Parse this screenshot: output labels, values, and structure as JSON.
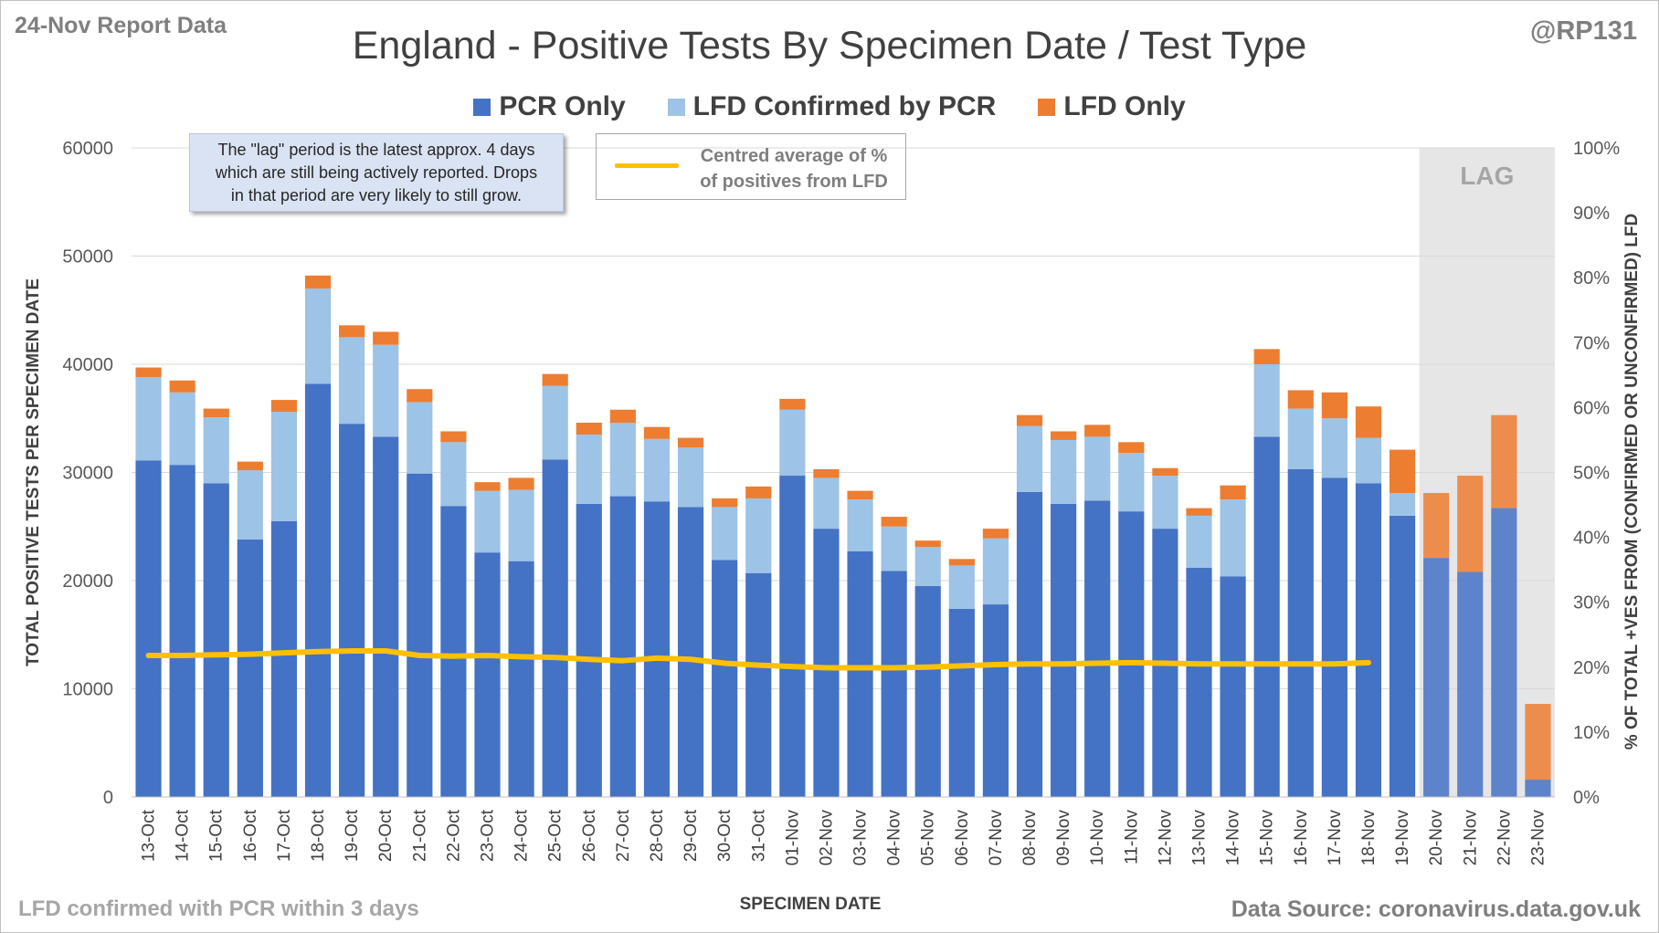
{
  "report_label": "24-Nov Report Data",
  "handle": "@RP131",
  "footer_left": "LFD confirmed with PCR within 3 days",
  "footer_right": "Data Source: coronavirus.data.gov.uk",
  "note_box": {
    "line1": "The \"lag\" period is the latest approx. 4 days",
    "line2": "which are still being actively reported. Drops",
    "line3": "in that period are very likely to still grow."
  },
  "line_legend": {
    "line1": "Centred average of %",
    "line2": "of positives from LFD"
  },
  "lag_label": "LAG",
  "colors": {
    "pcr": "#4472c4",
    "lfd_confirmed": "#9dc3e6",
    "lfd_only": "#ed7d31",
    "avg_line": "#ffc000",
    "lag_shade": "#e7e6e6",
    "grid": "#d9d9d9"
  },
  "chart_data": {
    "type": "bar",
    "stacked": true,
    "title": "England - Positive Tests By Specimen Date / Test Type",
    "xlabel": "SPECIMEN DATE",
    "ylabel": "TOTAL POSITIVE TESTS PER SPECIMEN DATE",
    "y2label": "% OF TOTAL +VES FROM (CONFIRMED OR UNCONFIRMED) LFD",
    "ylim": [
      0,
      60000
    ],
    "yticks": [
      0,
      10000,
      20000,
      30000,
      40000,
      50000,
      60000
    ],
    "y2lim": [
      0,
      100
    ],
    "y2ticks": [
      "0%",
      "10%",
      "20%",
      "30%",
      "40%",
      "50%",
      "60%",
      "70%",
      "80%",
      "90%",
      "100%"
    ],
    "grid": true,
    "legend_position": "top",
    "lag_categories": [
      "20-Nov",
      "21-Nov",
      "22-Nov",
      "23-Nov"
    ],
    "categories": [
      "13-Oct",
      "14-Oct",
      "15-Oct",
      "16-Oct",
      "17-Oct",
      "18-Oct",
      "19-Oct",
      "20-Oct",
      "21-Oct",
      "22-Oct",
      "23-Oct",
      "24-Oct",
      "25-Oct",
      "26-Oct",
      "27-Oct",
      "28-Oct",
      "29-Oct",
      "30-Oct",
      "31-Oct",
      "01-Nov",
      "02-Nov",
      "03-Nov",
      "04-Nov",
      "05-Nov",
      "06-Nov",
      "07-Nov",
      "08-Nov",
      "09-Nov",
      "10-Nov",
      "11-Nov",
      "12-Nov",
      "13-Nov",
      "14-Nov",
      "15-Nov",
      "16-Nov",
      "17-Nov",
      "18-Nov",
      "19-Nov",
      "20-Nov",
      "21-Nov",
      "22-Nov",
      "23-Nov"
    ],
    "series": [
      {
        "name": "PCR Only",
        "values": [
          31100,
          30700,
          29000,
          23800,
          25500,
          38200,
          34500,
          33300,
          29900,
          26900,
          22600,
          21800,
          31200,
          27100,
          27800,
          27300,
          26800,
          21900,
          20700,
          29700,
          24800,
          22700,
          20900,
          19500,
          17400,
          17800,
          28200,
          27100,
          27400,
          26400,
          24800,
          21200,
          20400,
          33300,
          30300,
          29500,
          29000,
          26000,
          22100,
          20800,
          26700,
          1600
        ]
      },
      {
        "name": "LFD Confirmed by PCR",
        "values": [
          7700,
          6700,
          6100,
          6400,
          10100,
          8800,
          8000,
          8500,
          6600,
          5900,
          5700,
          6600,
          6800,
          6400,
          6800,
          5800,
          5500,
          4900,
          6900,
          6100,
          4700,
          4800,
          4100,
          3600,
          4000,
          6100,
          6100,
          5900,
          5900,
          5400,
          4900,
          4800,
          7100,
          6700,
          5600,
          5500,
          4200,
          2100,
          0,
          0,
          0,
          0
        ]
      },
      {
        "name": "LFD Only",
        "values": [
          900,
          1100,
          800,
          800,
          1100,
          1200,
          1100,
          1200,
          1200,
          1000,
          800,
          1100,
          1100,
          1100,
          1200,
          1100,
          900,
          800,
          1100,
          1000,
          800,
          800,
          900,
          600,
          600,
          900,
          1000,
          800,
          1100,
          1000,
          700,
          700,
          1300,
          1400,
          1700,
          2400,
          2900,
          4000,
          6000,
          8900,
          8600,
          7000
        ]
      }
    ],
    "avg_line": {
      "name": "Centred average of % of positives from LFD",
      "axis": "right",
      "values": [
        21.8,
        21.8,
        21.9,
        22.0,
        22.2,
        22.4,
        22.5,
        22.5,
        21.8,
        21.7,
        21.8,
        21.6,
        21.5,
        21.2,
        21.0,
        21.4,
        21.2,
        20.6,
        20.3,
        20.1,
        19.9,
        19.9,
        19.9,
        20.0,
        20.2,
        20.4,
        20.5,
        20.5,
        20.6,
        20.7,
        20.6,
        20.5,
        20.5,
        20.5,
        20.5,
        20.5,
        20.7,
        null,
        null,
        null,
        null,
        null
      ]
    }
  }
}
